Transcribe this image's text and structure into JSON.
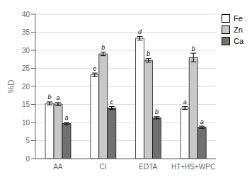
{
  "chart_data": {
    "type": "bar",
    "categories": [
      "AA",
      "CI",
      "EDTA",
      "HT+HS+WPC"
    ],
    "ylabel": "%D",
    "ylim": [
      0,
      40
    ],
    "yticks": [
      0,
      5,
      10,
      15,
      20,
      25,
      30,
      35,
      40
    ],
    "grid": true,
    "legend": "right",
    "series": [
      {
        "name": "Fe",
        "color": "#ffffff",
        "values": [
          15.3,
          23.2,
          33.3,
          14.0
        ],
        "errors": [
          0.4,
          0.5,
          0.5,
          0.4
        ],
        "annotations": [
          "b",
          "c",
          "d",
          "a"
        ]
      },
      {
        "name": "Zn",
        "color": "#c8c8c8",
        "values": [
          15.1,
          29.0,
          27.2,
          28.0
        ],
        "errors": [
          0.4,
          0.5,
          0.5,
          1.2
        ],
        "annotations": [
          "a",
          "b",
          "b",
          "b"
        ]
      },
      {
        "name": "Ca",
        "color": "#707070",
        "values": [
          9.7,
          14.0,
          11.3,
          8.7
        ],
        "errors": [
          0.3,
          0.4,
          0.3,
          0.3
        ],
        "annotations": [
          "a",
          "c",
          "b",
          "a"
        ]
      }
    ]
  }
}
